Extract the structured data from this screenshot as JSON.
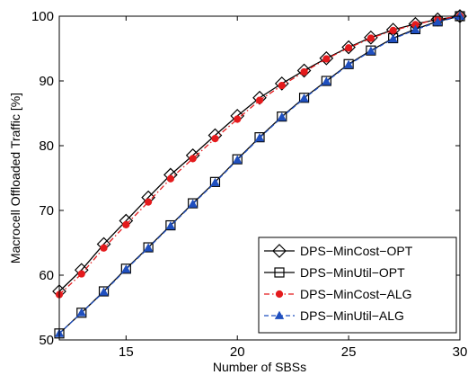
{
  "chart_data": {
    "type": "line",
    "title": "",
    "xlabel": "Number of SBSs",
    "ylabel": "Macrocell Offloaded Traffic [%]",
    "xlim": [
      12,
      30
    ],
    "ylim": [
      50,
      100
    ],
    "xticks": [
      15,
      20,
      25,
      30
    ],
    "yticks": [
      50,
      60,
      70,
      80,
      90,
      100
    ],
    "grid": false,
    "legend_position": "bottom-right",
    "x": [
      12,
      13,
      14,
      15,
      16,
      17,
      18,
      19,
      20,
      21,
      22,
      23,
      24,
      25,
      26,
      27,
      28,
      29,
      30
    ],
    "series": [
      {
        "name": "DPS−MinCost−OPT",
        "color": "#000000",
        "marker": "diamond",
        "line": "solid",
        "values": [
          57.5,
          60.8,
          64.8,
          68.4,
          72.0,
          75.5,
          78.5,
          81.6,
          84.6,
          87.4,
          89.6,
          91.6,
          93.5,
          95.2,
          96.7,
          97.9,
          98.8,
          99.5,
          100.0
        ]
      },
      {
        "name": "DPS−MinUtil−OPT",
        "color": "#000000",
        "marker": "square",
        "line": "solid",
        "values": [
          51.0,
          54.2,
          57.5,
          61.0,
          64.3,
          67.7,
          71.1,
          74.4,
          77.9,
          81.3,
          84.5,
          87.4,
          90.0,
          92.6,
          94.7,
          96.6,
          98.0,
          99.2,
          100.0
        ]
      },
      {
        "name": "DPS−MinCost−ALG",
        "color": "#e41a1c",
        "marker": "circle",
        "line": "dash-dot",
        "values": [
          57.0,
          60.2,
          64.2,
          67.8,
          71.3,
          74.9,
          78.0,
          81.1,
          84.1,
          87.0,
          89.3,
          91.4,
          93.4,
          95.1,
          96.6,
          97.8,
          98.7,
          99.5,
          100.0
        ]
      },
      {
        "name": "DPS−MinUtil−ALG",
        "color": "#1f4fbf",
        "marker": "triangle",
        "line": "dashed",
        "values": [
          51.0,
          54.2,
          57.4,
          60.9,
          64.2,
          67.6,
          71.0,
          74.3,
          77.8,
          81.2,
          84.4,
          87.3,
          89.9,
          92.5,
          94.6,
          96.5,
          97.9,
          99.1,
          100.0
        ]
      }
    ]
  }
}
